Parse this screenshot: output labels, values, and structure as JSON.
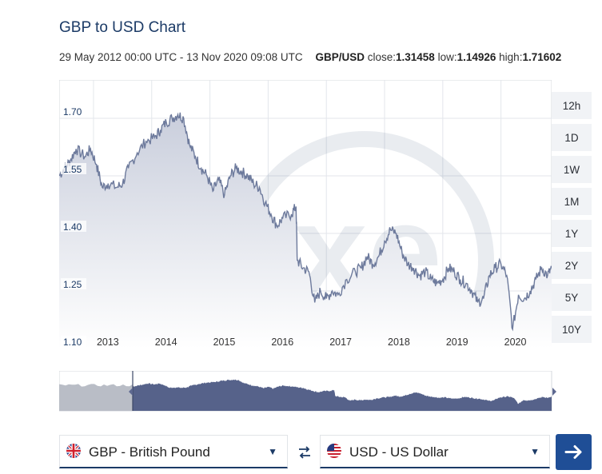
{
  "header": {
    "title": "GBP to USD Chart",
    "date_range": "29 May 2012 00:00 UTC - 13 Nov 2020 09:08 UTC",
    "pair": "GBP/USD",
    "close_label": "close:",
    "close_value": "1.31458",
    "low_label": "low:",
    "low_value": "1.14926",
    "high_label": "high:",
    "high_value": "1.71602"
  },
  "ranges": [
    "12h",
    "1D",
    "1W",
    "1M",
    "1Y",
    "2Y",
    "5Y",
    "10Y"
  ],
  "converter": {
    "from_label": "GBP - British Pound",
    "to_label": "USD - US Dollar"
  },
  "colors": {
    "line": "#6d7a9c",
    "area_top": "#c9cedc",
    "area_bottom": "#ffffff",
    "navigator_fill": "#56628a",
    "navigator_shade": "#b9bdc6",
    "brand": "#1b3a66",
    "button": "#1f4e96"
  },
  "icons": {
    "watermark": "xe-logo",
    "swap": "swap-arrows-icon",
    "submit": "arrow-right-icon",
    "caret": "chevron-down-icon",
    "from_flag": "uk-flag-icon",
    "to_flag": "us-flag-icon"
  },
  "chart_data": {
    "type": "area",
    "title": "GBP to USD Chart",
    "xlabel": "",
    "ylabel": "",
    "x_range": [
      2012.41,
      2020.87
    ],
    "ylim": [
      1.1,
      1.8
    ],
    "y_ticks": [
      "1.70",
      "1.55",
      "1.40",
      "1.25",
      "1.10"
    ],
    "x_ticks": [
      "2013",
      "2014",
      "2015",
      "2016",
      "2017",
      "2018",
      "2019",
      "2020"
    ],
    "grid": true,
    "series": [
      {
        "values": [
          [
            2012.41,
            1.55
          ],
          [
            2012.5,
            1.57
          ],
          [
            2012.6,
            1.59
          ],
          [
            2012.7,
            1.62
          ],
          [
            2012.85,
            1.6
          ],
          [
            2012.95,
            1.62
          ],
          [
            2013.05,
            1.58
          ],
          [
            2013.15,
            1.52
          ],
          [
            2013.25,
            1.53
          ],
          [
            2013.4,
            1.52
          ],
          [
            2013.5,
            1.53
          ],
          [
            2013.6,
            1.57
          ],
          [
            2013.75,
            1.61
          ],
          [
            2013.9,
            1.64
          ],
          [
            2014.05,
            1.65
          ],
          [
            2014.15,
            1.67
          ],
          [
            2014.25,
            1.69
          ],
          [
            2014.35,
            1.7
          ],
          [
            2014.45,
            1.71
          ],
          [
            2014.55,
            1.7
          ],
          [
            2014.65,
            1.63
          ],
          [
            2014.75,
            1.6
          ],
          [
            2014.85,
            1.57
          ],
          [
            2014.95,
            1.55
          ],
          [
            2015.05,
            1.51
          ],
          [
            2015.15,
            1.54
          ],
          [
            2015.25,
            1.5
          ],
          [
            2015.35,
            1.55
          ],
          [
            2015.45,
            1.57
          ],
          [
            2015.55,
            1.56
          ],
          [
            2015.65,
            1.55
          ],
          [
            2015.75,
            1.53
          ],
          [
            2015.85,
            1.52
          ],
          [
            2015.95,
            1.48
          ],
          [
            2016.05,
            1.45
          ],
          [
            2016.15,
            1.42
          ],
          [
            2016.25,
            1.44
          ],
          [
            2016.4,
            1.45
          ],
          [
            2016.48,
            1.47
          ],
          [
            2016.5,
            1.33
          ],
          [
            2016.6,
            1.31
          ],
          [
            2016.7,
            1.3
          ],
          [
            2016.8,
            1.22
          ],
          [
            2016.9,
            1.25
          ],
          [
            2017.0,
            1.23
          ],
          [
            2017.1,
            1.25
          ],
          [
            2017.2,
            1.24
          ],
          [
            2017.35,
            1.28
          ],
          [
            2017.5,
            1.3
          ],
          [
            2017.6,
            1.31
          ],
          [
            2017.7,
            1.34
          ],
          [
            2017.8,
            1.32
          ],
          [
            2017.9,
            1.34
          ],
          [
            2018.0,
            1.38
          ],
          [
            2018.1,
            1.41
          ],
          [
            2018.2,
            1.4
          ],
          [
            2018.3,
            1.35
          ],
          [
            2018.4,
            1.32
          ],
          [
            2018.5,
            1.31
          ],
          [
            2018.6,
            1.29
          ],
          [
            2018.7,
            1.3
          ],
          [
            2018.8,
            1.28
          ],
          [
            2018.9,
            1.27
          ],
          [
            2019.0,
            1.28
          ],
          [
            2019.1,
            1.31
          ],
          [
            2019.2,
            1.3
          ],
          [
            2019.3,
            1.28
          ],
          [
            2019.4,
            1.27
          ],
          [
            2019.5,
            1.25
          ],
          [
            2019.6,
            1.22
          ],
          [
            2019.7,
            1.23
          ],
          [
            2019.8,
            1.29
          ],
          [
            2019.9,
            1.31
          ],
          [
            2020.0,
            1.32
          ],
          [
            2020.1,
            1.29
          ],
          [
            2020.2,
            1.15
          ],
          [
            2020.3,
            1.24
          ],
          [
            2020.4,
            1.23
          ],
          [
            2020.5,
            1.25
          ],
          [
            2020.6,
            1.28
          ],
          [
            2020.7,
            1.31
          ],
          [
            2020.8,
            1.29
          ],
          [
            2020.87,
            1.31
          ]
        ]
      }
    ]
  }
}
